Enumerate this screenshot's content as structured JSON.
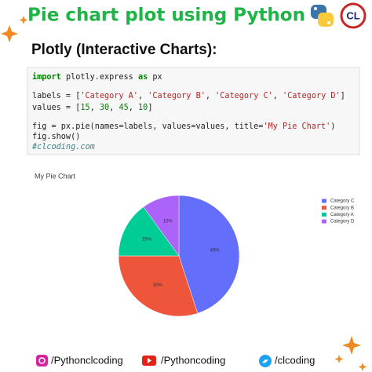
{
  "header": {
    "title": "Pie chart plot using Python",
    "subtitle": "Plotly (Interactive Charts):"
  },
  "code": {
    "lines": [
      [
        {
          "text": "import",
          "color": "#008000"
        },
        {
          "text": " plotly.express ",
          "color": "#222222"
        },
        {
          "text": "as",
          "color": "#008000"
        },
        {
          "text": " px",
          "color": "#222222"
        }
      ],
      [],
      [
        {
          "text": "labels = [",
          "color": "#222222"
        },
        {
          "text": "'Category A'",
          "color": "#ba2121"
        },
        {
          "text": ", ",
          "color": "#222222"
        },
        {
          "text": "'Category B'",
          "color": "#ba2121"
        },
        {
          "text": ", ",
          "color": "#222222"
        },
        {
          "text": "'Category C'",
          "color": "#ba2121"
        },
        {
          "text": ", ",
          "color": "#222222"
        },
        {
          "text": "'Category D'",
          "color": "#ba2121"
        },
        {
          "text": "]",
          "color": "#222222"
        }
      ],
      [
        {
          "text": "values = [",
          "color": "#222222"
        },
        {
          "text": "15",
          "color": "#008000"
        },
        {
          "text": ", ",
          "color": "#222222"
        },
        {
          "text": "30",
          "color": "#008000"
        },
        {
          "text": ", ",
          "color": "#222222"
        },
        {
          "text": "45",
          "color": "#008000"
        },
        {
          "text": ", ",
          "color": "#222222"
        },
        {
          "text": "10",
          "color": "#008000"
        },
        {
          "text": "]",
          "color": "#222222"
        }
      ],
      [],
      [
        {
          "text": "fig = px.pie(names=labels, values=values, title=",
          "color": "#222222"
        },
        {
          "text": "'My Pie Chart'",
          "color": "#ba2121"
        },
        {
          "text": ")",
          "color": "#222222"
        }
      ],
      [
        {
          "text": "fig.show()",
          "color": "#222222"
        }
      ],
      [
        {
          "text": "#clcoding.com",
          "color": "#408080"
        }
      ]
    ]
  },
  "chart_data": {
    "type": "pie",
    "title": "My Pie Chart",
    "categories": [
      "Category C",
      "Category B",
      "Category A",
      "Category D"
    ],
    "values": [
      45,
      30,
      15,
      10
    ],
    "value_labels": [
      "45%",
      "30%",
      "15%",
      "10%"
    ],
    "colors": [
      "#636efa",
      "#ef553b",
      "#00cc96",
      "#ab63fa"
    ]
  },
  "footer": {
    "instagram": "/Pythonclcoding",
    "youtube": "/Pythoncoding",
    "twitter": "/clcoding"
  }
}
